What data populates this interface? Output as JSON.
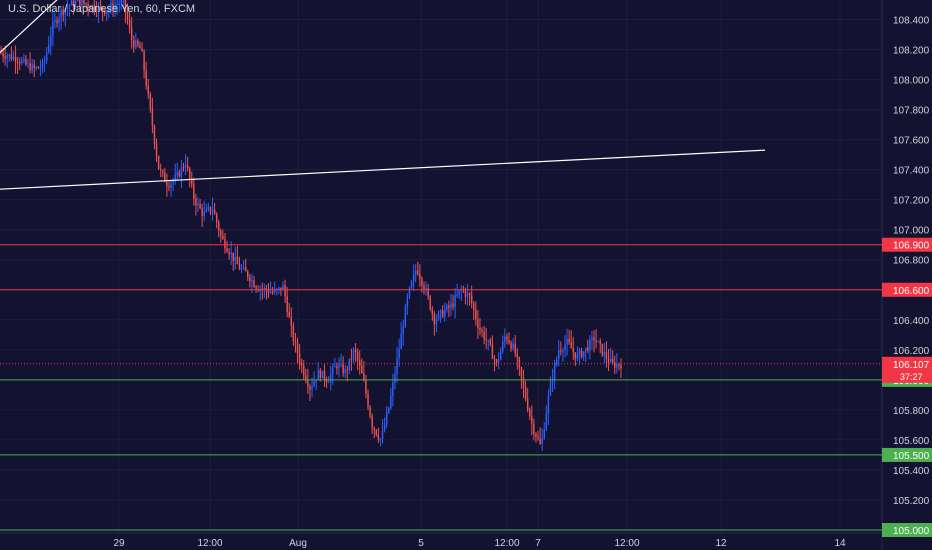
{
  "chart_data": {
    "type": "candlestick",
    "title": "U.S. Dollar / Japanese Yen, 60, FXCM",
    "symbol": "USDJPY",
    "interval": "60",
    "source": "FXCM",
    "ylim": [
      104.98,
      108.53
    ],
    "y_ticks": [
      "108.400",
      "108.200",
      "108.000",
      "107.800",
      "107.600",
      "107.400",
      "107.200",
      "107.000",
      "106.800",
      "106.400",
      "106.200",
      "105.800",
      "105.600",
      "105.400",
      "105.200"
    ],
    "x_ticks": [
      "29",
      "12:00",
      "Aug",
      "5",
      "12:00",
      "7",
      "12:00",
      "12",
      "14"
    ],
    "current_price": "106.107",
    "countdown": "37:27",
    "horizontal_levels": [
      {
        "label": "106.900",
        "value": 106.9,
        "color": "#f23645"
      },
      {
        "label": "106.600",
        "value": 106.6,
        "color": "#f23645"
      },
      {
        "label": "106.000",
        "value": 106.0,
        "color": "#4caf50"
      },
      {
        "label": "105.500",
        "value": 105.5,
        "color": "#4caf50"
      },
      {
        "label": "105.000",
        "value": 105.0,
        "color": "#4caf50"
      }
    ],
    "trendlines": [
      {
        "color": "#ffffff",
        "points": [
          [
            106.3,
            0
          ],
          [
            107.55,
            1
          ]
        ]
      },
      {
        "color": "#ffffff",
        "points": [
          [
            108.18,
            0
          ],
          [
            108.55,
            1
          ]
        ]
      }
    ],
    "price_path": [
      108.18,
      108.16,
      108.14,
      108.1,
      108.07,
      108.09,
      108.35,
      108.45,
      108.5,
      108.52,
      108.5,
      108.48,
      108.46,
      108.5,
      108.52,
      108.25,
      108.2,
      107.8,
      107.4,
      107.3,
      107.35,
      107.45,
      107.2,
      107.1,
      107.15,
      106.95,
      106.85,
      106.75,
      106.7,
      106.62,
      106.6,
      106.58,
      106.62,
      106.3,
      106.1,
      105.95,
      106.05,
      106.0,
      106.1,
      106.05,
      106.2,
      106.0,
      105.7,
      105.6,
      105.85,
      106.2,
      106.55,
      106.75,
      106.6,
      106.4,
      106.45,
      106.5,
      106.6,
      106.55,
      106.35,
      106.25,
      106.1,
      106.3,
      106.2,
      105.95,
      105.7,
      105.55,
      105.95,
      106.2,
      106.25,
      106.15,
      106.2,
      106.28,
      106.18,
      106.1,
      106.107
    ],
    "colors": {
      "up": "#2962ff",
      "down": "#ef5350",
      "background": "#131230",
      "grid": "#1e1d3d",
      "current": "#f23645"
    }
  }
}
